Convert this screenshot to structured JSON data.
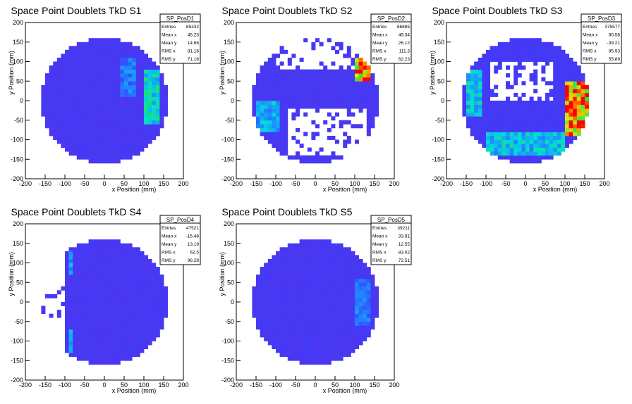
{
  "chart_data": [
    {
      "type": "heatmap",
      "title": "Space Point Doublets TkD S1",
      "xlabel": "x Position (mm)",
      "ylabel": "y Position (mm)",
      "xlim": [
        -200,
        200
      ],
      "ylim": [
        -200,
        200
      ],
      "xticks": [
        -200,
        -150,
        -100,
        -50,
        0,
        50,
        100,
        150,
        200
      ],
      "yticks": [
        -200,
        -150,
        -100,
        -50,
        0,
        50,
        100,
        150,
        200
      ],
      "stats": {
        "name": "SP_PosD1",
        "rows": [
          {
            "label": "Entries",
            "value": "85332"
          },
          {
            "label": "Mean x",
            "value": "45.23"
          },
          {
            "label": "Mean y",
            "value": "14.66"
          },
          {
            "label": "RMS x",
            "value": "81.16"
          },
          {
            "label": "RMS y",
            "value": "71.16"
          }
        ]
      },
      "pattern": {
        "base": 0.1,
        "hot": [
          {
            "x": 120,
            "y": 10,
            "w": 45,
            "h": 150,
            "level": 0.55
          },
          {
            "x": 60,
            "y": 60,
            "w": 50,
            "h": 100,
            "level": 0.35
          }
        ],
        "holes": [],
        "cut": null
      }
    },
    {
      "type": "heatmap",
      "title": "Space Point Doublets TkD S2",
      "xlabel": "x Position (mm)",
      "ylabel": "y Position (mm)",
      "xlim": [
        -200,
        200
      ],
      "ylim": [
        -200,
        200
      ],
      "xticks": [
        -200,
        -150,
        -100,
        -50,
        0,
        50,
        100,
        150,
        200
      ],
      "yticks": [
        -200,
        -150,
        -100,
        -50,
        0,
        50,
        100,
        150,
        200
      ],
      "stats": {
        "name": "SP_PosD2",
        "rows": [
          {
            "label": "Entries",
            "value": "86885"
          },
          {
            "label": "Mean x",
            "value": "49.34"
          },
          {
            "label": "Mean y",
            "value": "26.12"
          },
          {
            "label": "RMS x",
            "value": "111.3"
          },
          {
            "label": "RMS y",
            "value": "62.23"
          }
        ]
      },
      "pattern": {
        "base": 0.1,
        "hot": [
          {
            "x": 120,
            "y": 80,
            "w": 45,
            "h": 60,
            "level": 0.95
          },
          {
            "x": -120,
            "y": -40,
            "w": 70,
            "h": 80,
            "level": 0.45
          }
        ],
        "holes": [
          {
            "x": 0,
            "y": 120,
            "w": 200,
            "h": 80
          },
          {
            "x": 30,
            "y": -80,
            "w": 200,
            "h": 120
          }
        ],
        "cut": null
      }
    },
    {
      "type": "heatmap",
      "title": "Space Point Doublets TkD S3",
      "xlabel": "x Position (mm)",
      "ylabel": "y Position (mm)",
      "xlim": [
        -200,
        200
      ],
      "ylim": [
        -200,
        200
      ],
      "xticks": [
        -200,
        -150,
        -100,
        -50,
        0,
        50,
        100,
        150,
        200
      ],
      "yticks": [
        -200,
        -150,
        -100,
        -50,
        0,
        50,
        100,
        150,
        200
      ],
      "stats": {
        "name": "SP_PosD3",
        "rows": [
          {
            "label": "Entries",
            "value": "375577"
          },
          {
            "label": "Mean x",
            "value": "80.58"
          },
          {
            "label": "Mean y",
            "value": "-39.21"
          },
          {
            "label": "RMS x",
            "value": "85.93"
          },
          {
            "label": "RMS y",
            "value": "55.89"
          }
        ]
      },
      "pattern": {
        "base": 0.12,
        "hot": [
          {
            "x": 130,
            "y": -20,
            "w": 60,
            "h": 140,
            "level": 1.0
          },
          {
            "x": 0,
            "y": -110,
            "w": 200,
            "h": 70,
            "level": 0.5
          },
          {
            "x": -130,
            "y": 20,
            "w": 40,
            "h": 130,
            "level": 0.5
          }
        ],
        "holes": [
          {
            "x": -10,
            "y": 50,
            "w": 160,
            "h": 110
          }
        ],
        "cut": null
      }
    },
    {
      "type": "heatmap",
      "title": "Space Point Doublets TkD S4",
      "xlabel": "x Position (mm)",
      "ylabel": "y Position (mm)",
      "xlim": [
        -200,
        200
      ],
      "ylim": [
        -200,
        200
      ],
      "xticks": [
        -200,
        -150,
        -100,
        -50,
        0,
        50,
        100,
        150,
        200
      ],
      "yticks": [
        -200,
        -150,
        -100,
        -50,
        0,
        50,
        100,
        150,
        200
      ],
      "stats": {
        "name": "SP_PosD4",
        "rows": [
          {
            "label": "Entries",
            "value": "47521"
          },
          {
            "label": "Mean x",
            "value": "-15.48"
          },
          {
            "label": "Mean y",
            "value": "13.19"
          },
          {
            "label": "RMS x",
            "value": "62.5"
          },
          {
            "label": "RMS y",
            "value": "96.28"
          }
        ]
      },
      "pattern": {
        "base": 0.1,
        "hot": [
          {
            "x": -85,
            "y": 100,
            "w": 20,
            "h": 60,
            "level": 0.45
          },
          {
            "x": -85,
            "y": -100,
            "w": 20,
            "h": 60,
            "level": 0.45
          }
        ],
        "holes": [
          {
            "x": -135,
            "y": 10,
            "w": 80,
            "h": 130
          }
        ],
        "cut": -95
      }
    },
    {
      "type": "heatmap",
      "title": "Space Point Doublets TkD S5",
      "xlabel": "x Position (mm)",
      "ylabel": "y Position (mm)",
      "xlim": [
        -200,
        200
      ],
      "ylim": [
        -200,
        200
      ],
      "xticks": [
        -200,
        -150,
        -100,
        -50,
        0,
        50,
        100,
        150,
        200
      ],
      "yticks": [
        -200,
        -150,
        -100,
        -50,
        0,
        50,
        100,
        150,
        200
      ],
      "stats": {
        "name": "SP_PosD5",
        "rows": [
          {
            "label": "Entries",
            "value": "39211"
          },
          {
            "label": "Mean x",
            "value": "33.91"
          },
          {
            "label": "Mean y",
            "value": "12.55"
          },
          {
            "label": "RMS x",
            "value": "83.02"
          },
          {
            "label": "RMS y",
            "value": "72.51"
          }
        ]
      },
      "pattern": {
        "base": 0.1,
        "hot": [
          {
            "x": 120,
            "y": 0,
            "w": 40,
            "h": 120,
            "level": 0.35
          }
        ],
        "holes": [],
        "cut": null
      }
    }
  ]
}
